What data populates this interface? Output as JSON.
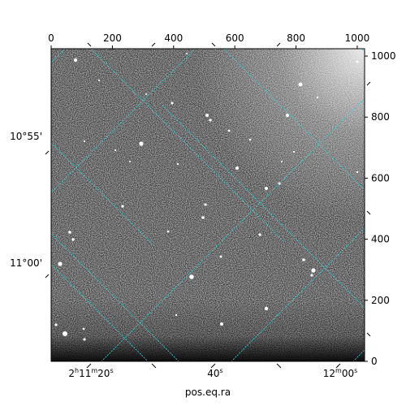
{
  "chart_data": {
    "type": "image",
    "colormap": "gray",
    "background_color": "#ffffff",
    "grid_color": "#2fd0d0",
    "pixel_axes": {
      "x_range": [
        0,
        1024
      ],
      "y_range": [
        0,
        1024
      ],
      "x_ticks": [
        0,
        200,
        400,
        600,
        800,
        1000
      ],
      "y_ticks": [
        0,
        200,
        400,
        600,
        800,
        1000
      ],
      "x_tick_labels": [
        "0",
        "200",
        "400",
        "600",
        "800",
        "1000"
      ],
      "y_tick_labels": [
        "0",
        "200",
        "400",
        "600",
        "800",
        "1000"
      ]
    },
    "world_axes": {
      "ra_tick_labels": [
        {
          "base": "2",
          "sup1": "h",
          "mid": "11",
          "sup2": "m",
          "end": "20",
          "sup3": "s"
        },
        {
          "base": "",
          "sup1": "",
          "mid": "",
          "sup2": "",
          "end": "40",
          "sup3": "s"
        },
        {
          "base": "",
          "sup1": "",
          "mid": "12",
          "sup2": "m",
          "end": "00",
          "sup3": "s"
        }
      ],
      "dec_tick_labels": [
        "10°55'",
        "11°00'"
      ],
      "xlabel": "pos.eq.ra"
    }
  }
}
